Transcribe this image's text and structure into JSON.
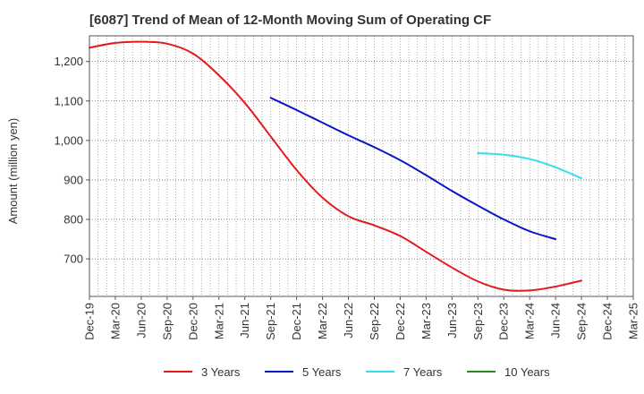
{
  "chart_data": {
    "type": "line",
    "title": "[6087]  Trend of Mean of 12-Month Moving Sum of Operating CF",
    "xlabel": "",
    "ylabel": "Amount (million yen)",
    "categories": [
      "Dec-19",
      "Mar-20",
      "Jun-20",
      "Sep-20",
      "Dec-20",
      "Mar-21",
      "Jun-21",
      "Sep-21",
      "Dec-21",
      "Mar-22",
      "Jun-22",
      "Sep-22",
      "Dec-22",
      "Mar-23",
      "Jun-23",
      "Sep-23",
      "Dec-23",
      "Mar-24",
      "Jun-24",
      "Sep-24",
      "Dec-24",
      "Mar-25"
    ],
    "y_ticks": [
      700,
      800,
      900,
      1000,
      1100,
      1200
    ],
    "y_tick_labels": [
      "700",
      "800",
      "900",
      "1,000",
      "1,100",
      "1,200"
    ],
    "ylim": [
      605,
      1265
    ],
    "grid": true,
    "legend_position": "bottom",
    "series": [
      {
        "name": "3 Years",
        "color": "#e31a1c",
        "values": [
          1235,
          1247,
          1250,
          1245,
          1220,
          1165,
          1095,
          1010,
          925,
          855,
          808,
          785,
          758,
          718,
          678,
          643,
          622,
          620,
          630,
          645,
          null,
          null
        ]
      },
      {
        "name": "5 Years",
        "color": "#0a14c8",
        "values": [
          null,
          null,
          null,
          null,
          null,
          null,
          null,
          1108,
          1077,
          1045,
          1013,
          983,
          950,
          912,
          872,
          835,
          800,
          770,
          750,
          null,
          null,
          null
        ]
      },
      {
        "name": "7 Years",
        "color": "#33e0e8",
        "values": [
          null,
          null,
          null,
          null,
          null,
          null,
          null,
          null,
          null,
          null,
          null,
          null,
          null,
          null,
          null,
          968,
          964,
          953,
          932,
          904,
          null,
          null
        ]
      },
      {
        "name": "10 Years",
        "color": "#228b22",
        "values": [
          null,
          null,
          null,
          null,
          null,
          null,
          null,
          null,
          null,
          null,
          null,
          null,
          null,
          null,
          null,
          null,
          null,
          null,
          null,
          null,
          null,
          null
        ]
      }
    ]
  }
}
